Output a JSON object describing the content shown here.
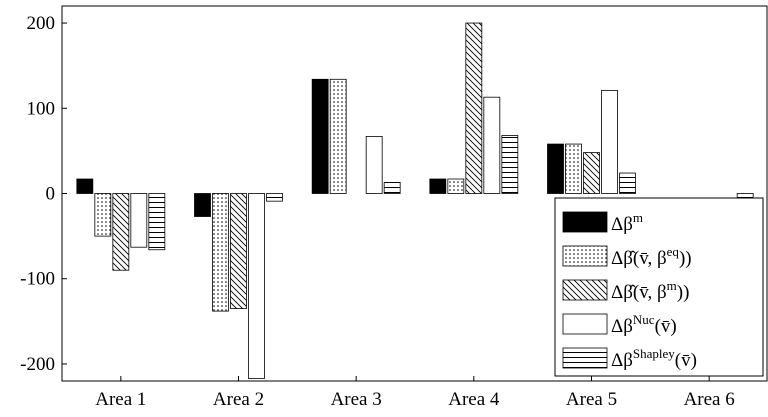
{
  "chart_data": {
    "type": "bar",
    "categories": [
      "Area 1",
      "Area 2",
      "Area 3",
      "Area 4",
      "Area 5",
      "Area 6"
    ],
    "series": [
      {
        "name": "Δβ^m",
        "label_main": "Δβ",
        "label_sup": "m",
        "label_tail": "",
        "pattern": "solid",
        "values": [
          17,
          -27,
          134,
          17,
          58,
          0
        ]
      },
      {
        "name": "Δβ̂(v̄, β^eq))",
        "label_main": "Δβ̂(v̄, β",
        "label_sup": "eq",
        "label_tail": "))",
        "pattern": "dots",
        "values": [
          -50,
          -138,
          134,
          17,
          58,
          0
        ]
      },
      {
        "name": "Δβ̂(v̄, β^m))",
        "label_main": "Δβ̂(v̄, β",
        "label_sup": "m",
        "label_tail": "))",
        "pattern": "diag",
        "values": [
          -90,
          -135,
          0,
          200,
          48,
          0
        ]
      },
      {
        "name": "Δβ^Nuc(v̄)",
        "label_main": "Δβ",
        "label_sup": "Nuc",
        "label_tail": "(v̄)",
        "pattern": "empty",
        "values": [
          -63,
          -217,
          67,
          113,
          121,
          0
        ]
      },
      {
        "name": "Δβ^Shapley(v̄)",
        "label_main": "Δβ",
        "label_sup": "Shapley",
        "label_tail": "(v̄)",
        "pattern": "hlines",
        "values": [
          -66,
          -9,
          13,
          68,
          24,
          -10
        ]
      }
    ],
    "yticks": [
      "-200",
      "-100",
      "0",
      "100",
      "200"
    ],
    "ylim": [
      -220,
      220
    ],
    "grid": false,
    "legend_position": "right"
  }
}
